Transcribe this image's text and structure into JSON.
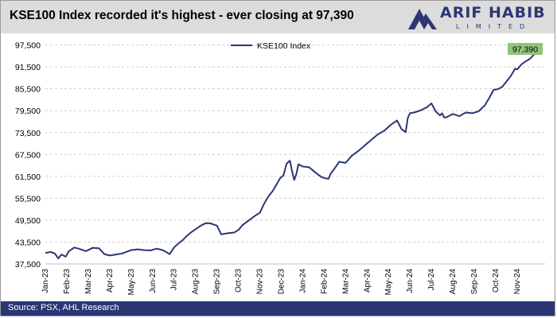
{
  "header": {
    "title": "KSE100 Index recorded it's highest - ever closing at 97,390",
    "logo_name": "ARIF HABIB",
    "logo_sub": "LIMITED"
  },
  "footer": {
    "source": "Source: PSX, AHL Research"
  },
  "colors": {
    "navy": "#2b3674",
    "callout": "#92c47d"
  },
  "chart_data": {
    "type": "line",
    "title": "KSE100 Index recorded it's highest - ever closing at 97,390",
    "xlabel": "",
    "ylabel": "",
    "legend": [
      "KSE100 Index"
    ],
    "legend_position": "top-center",
    "grid": true,
    "ylim": [
      37500,
      98500
    ],
    "yticks": [
      "37,500",
      "43,500",
      "49,500",
      "55,500",
      "61,500",
      "67,500",
      "73,500",
      "79,500",
      "85,500",
      "91,500",
      "97,500"
    ],
    "ytick_values": [
      37500,
      43500,
      49500,
      55500,
      61500,
      67500,
      73500,
      79500,
      85500,
      91500,
      97500
    ],
    "xlim": [
      0,
      23.3
    ],
    "xticks": [
      "Jan-23",
      "Feb-23",
      "Mar-23",
      "Apr-23",
      "May-23",
      "Jun-23",
      "Jul-23",
      "Aug-23",
      "Sep-23",
      "Oct-23",
      "Nov-23",
      "Dec-23",
      "Jan-24",
      "Feb-24",
      "Mar-24",
      "Apr-24",
      "May-24",
      "Jun-24",
      "Jul-24",
      "Aug-24",
      "Sep-24",
      "Oct-24",
      "Nov-24"
    ],
    "callout": "97,390",
    "series": [
      {
        "name": "KSE100 Index",
        "color": "#2b3674",
        "x": [
          0,
          0.25,
          0.45,
          0.6,
          0.75,
          0.95,
          1.1,
          1.35,
          1.6,
          1.9,
          2.2,
          2.5,
          2.75,
          3.0,
          3.3,
          3.6,
          4.0,
          4.3,
          4.6,
          4.9,
          5.2,
          5.5,
          5.8,
          6.0,
          6.2,
          6.4,
          6.6,
          6.8,
          7.0,
          7.3,
          7.5,
          7.7,
          7.85,
          8.0,
          8.2,
          8.5,
          8.8,
          9.0,
          9.2,
          9.5,
          9.8,
          10.0,
          10.2,
          10.4,
          10.6,
          10.8,
          10.95,
          11.1,
          11.25,
          11.4,
          11.5,
          11.6,
          11.7,
          11.8,
          12.0,
          12.3,
          12.6,
          12.9,
          13.2,
          13.3,
          13.5,
          13.7,
          14.0,
          14.3,
          14.6,
          14.9,
          15.2,
          15.5,
          15.8,
          16.1,
          16.4,
          16.6,
          16.8,
          16.9,
          17.0,
          17.2,
          17.5,
          17.8,
          18.0,
          18.2,
          18.4,
          18.5,
          18.6,
          18.7,
          19.0,
          19.3,
          19.6,
          19.9,
          20.2,
          20.5,
          20.7,
          20.9,
          21.1,
          21.3,
          21.5,
          21.7,
          21.9,
          22.0,
          22.2,
          22.4,
          22.6,
          22.8,
          23.0
        ],
        "values": [
          40500,
          40800,
          40300,
          39000,
          40100,
          39500,
          41000,
          42000,
          41600,
          41000,
          41900,
          41800,
          40200,
          39800,
          40100,
          40400,
          41300,
          41500,
          41300,
          41200,
          41700,
          41200,
          40200,
          42000,
          43100,
          44000,
          45200,
          46200,
          47000,
          48200,
          48700,
          48600,
          48300,
          48000,
          45600,
          45900,
          46100,
          46800,
          48200,
          49500,
          50800,
          51500,
          54000,
          56000,
          57500,
          59500,
          61000,
          61800,
          65000,
          65800,
          63000,
          60500,
          62000,
          64800,
          64200,
          64000,
          62500,
          61200,
          60800,
          62200,
          63800,
          65500,
          65200,
          67200,
          68500,
          70000,
          71500,
          73000,
          74000,
          75600,
          76800,
          74500,
          73600,
          77500,
          78800,
          79000,
          79600,
          80500,
          81500,
          79300,
          78200,
          78800,
          77600,
          77700,
          78600,
          78000,
          79000,
          78800,
          79300,
          81000,
          83000,
          85200,
          85400,
          86000,
          87500,
          89000,
          91000,
          90800,
          92200,
          93000,
          93700,
          95000,
          97390
        ]
      }
    ]
  }
}
